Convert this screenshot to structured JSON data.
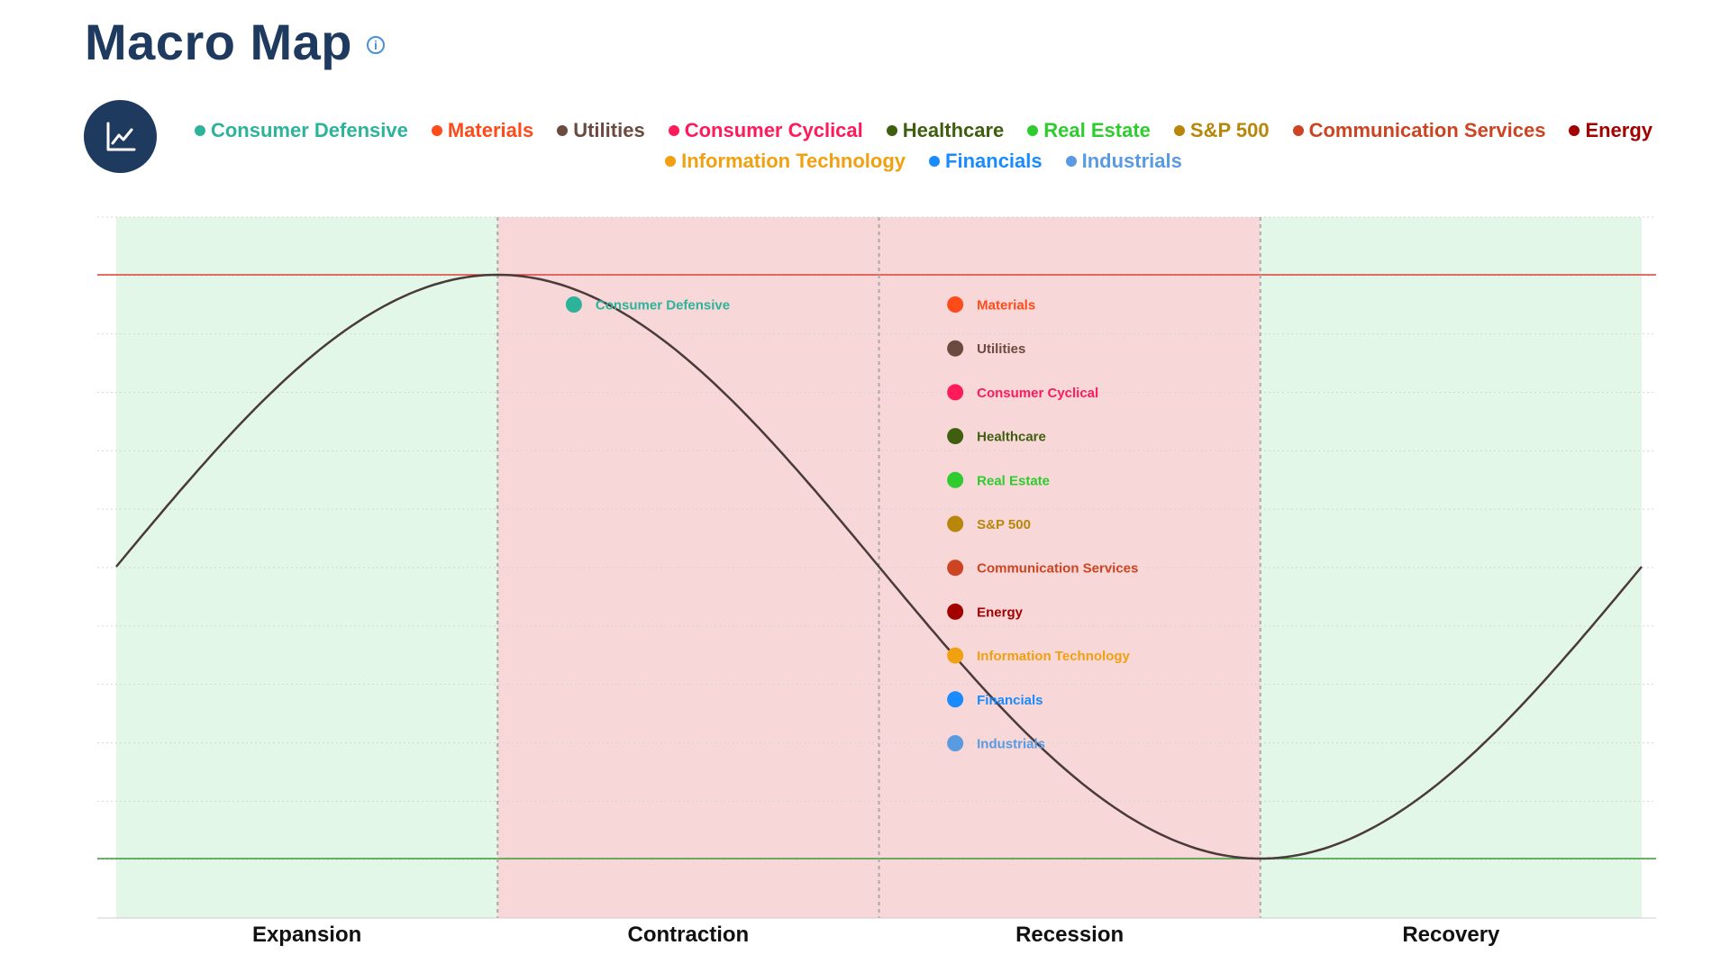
{
  "header": {
    "title": "Macro Map",
    "info_glyph": "i"
  },
  "chart_button_icon": "line-chart-icon",
  "colors": {
    "title": "#1f3a5f",
    "curve": "#4a3a3a",
    "peak_line": "#e0403a",
    "trough_line": "#3a9a3a",
    "expansion_bg": "#e2f7e8",
    "contraction_bg": "#f7d7d7"
  },
  "chart_data": {
    "type": "line",
    "phases": [
      "Expansion",
      "Contraction",
      "Recession",
      "Recovery"
    ],
    "phase_colors": [
      "#e2f7e8",
      "#f7d7d7",
      "#f7d7d7",
      "#e2f7e8"
    ],
    "curve": "sine cycle: midpoint at start of Expansion, peak at Expansion/Contraction boundary, trough at Recession/Recovery boundary, back to midpoint at end of Recovery",
    "series": [
      {
        "name": "Consumer Defensive",
        "color": "#2db39a",
        "phase": "Contraction",
        "position": 0.2
      },
      {
        "name": "Materials",
        "color": "#ff4a1a",
        "phase": "Recession",
        "position": 0.2
      },
      {
        "name": "Utilities",
        "color": "#6b4a40",
        "phase": "Recession",
        "position": 0.2
      },
      {
        "name": "Consumer Cyclical",
        "color": "#ff1a5a",
        "phase": "Recession",
        "position": 0.2
      },
      {
        "name": "Healthcare",
        "color": "#3f5f10",
        "phase": "Recession",
        "position": 0.2
      },
      {
        "name": "Real Estate",
        "color": "#2ecc2e",
        "phase": "Recession",
        "position": 0.2
      },
      {
        "name": "S&P 500",
        "color": "#b8860b",
        "phase": "Recession",
        "position": 0.2
      },
      {
        "name": "Communication Services",
        "color": "#cc4422",
        "phase": "Recession",
        "position": 0.2
      },
      {
        "name": "Energy",
        "color": "#a30000",
        "phase": "Recession",
        "position": 0.2
      },
      {
        "name": "Information Technology",
        "color": "#f0a010",
        "phase": "Recession",
        "position": 0.2
      },
      {
        "name": "Financials",
        "color": "#1a8aff",
        "phase": "Recession",
        "position": 0.2
      },
      {
        "name": "Industrials",
        "color": "#5a9ae0",
        "phase": "Recession",
        "position": 0.2
      }
    ],
    "legend_position": "top-center",
    "grid": true
  }
}
